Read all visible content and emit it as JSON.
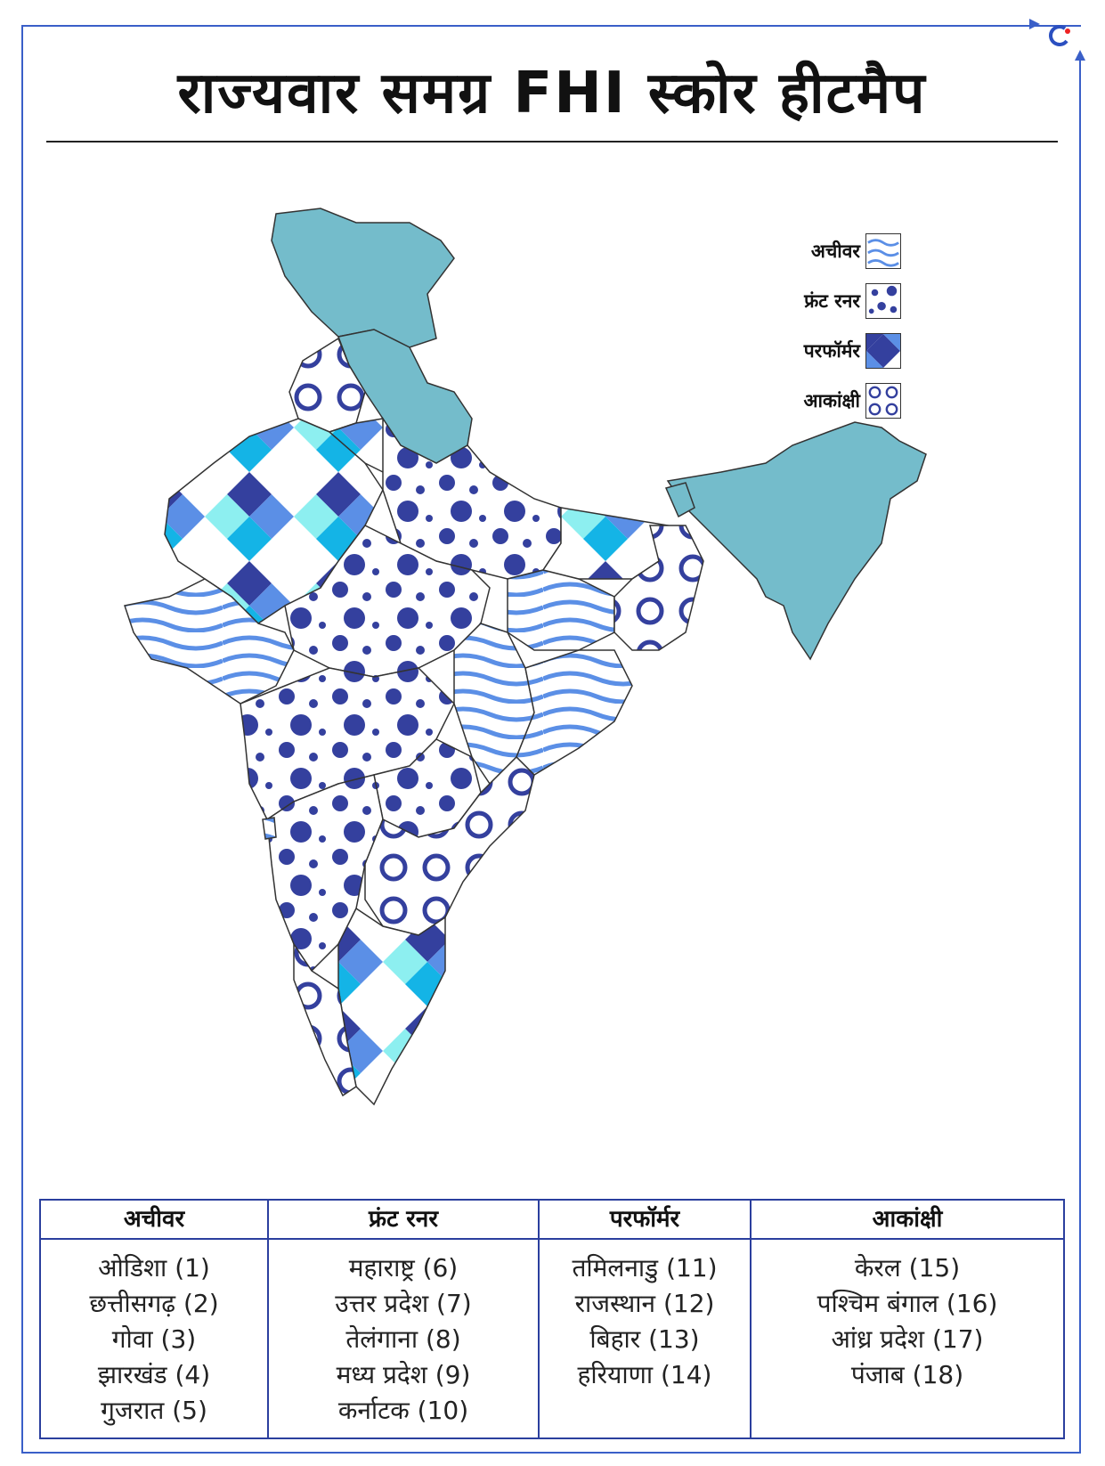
{
  "title": "राज्यवार समग्र FHI स्कोर हीटमैप",
  "legend": [
    {
      "label": "अचीवर",
      "pattern": "waves"
    },
    {
      "label": "फ्रंट रनर",
      "pattern": "dots"
    },
    {
      "label": "परफॉर्मर",
      "pattern": "diamonds"
    },
    {
      "label": "आकांक्षी",
      "pattern": "rings"
    }
  ],
  "colors": {
    "frame": "#3a5fc8",
    "himalayan_states": "#74bccb",
    "wave": "#5b8fe6",
    "dot": "#34409e",
    "diamond_dark": "#34409e",
    "diamond_mid": "#5b8fe6",
    "diamond_cyan": "#14b4e6",
    "diamond_light": "#8deff0",
    "table_border": "#2b3f9e"
  },
  "table": {
    "columns": [
      {
        "header": "अचीवर",
        "items": [
          "ओडिशा (1)",
          "छत्तीसगढ़ (2)",
          "गोवा (3)",
          "झारखंड (4)",
          "गुजरात (5)"
        ]
      },
      {
        "header": "फ्रंट रनर",
        "items": [
          "महाराष्ट्र (6)",
          "उत्तर प्रदेश (7)",
          "तेलंगाना (8)",
          "मध्य प्रदेश (9)",
          "कर्नाटक (10)"
        ]
      },
      {
        "header": "परफॉर्मर",
        "items": [
          "तमिलनाडु (11)",
          "राजस्थान (12)",
          "बिहार (13)",
          "हरियाणा (14)"
        ]
      },
      {
        "header": "आकांक्षी",
        "items": [
          "केरल (15)",
          "पश्चिम बंगाल (16)",
          "आंध्र प्रदेश (17)",
          "पंजाब (18)"
        ]
      }
    ]
  }
}
